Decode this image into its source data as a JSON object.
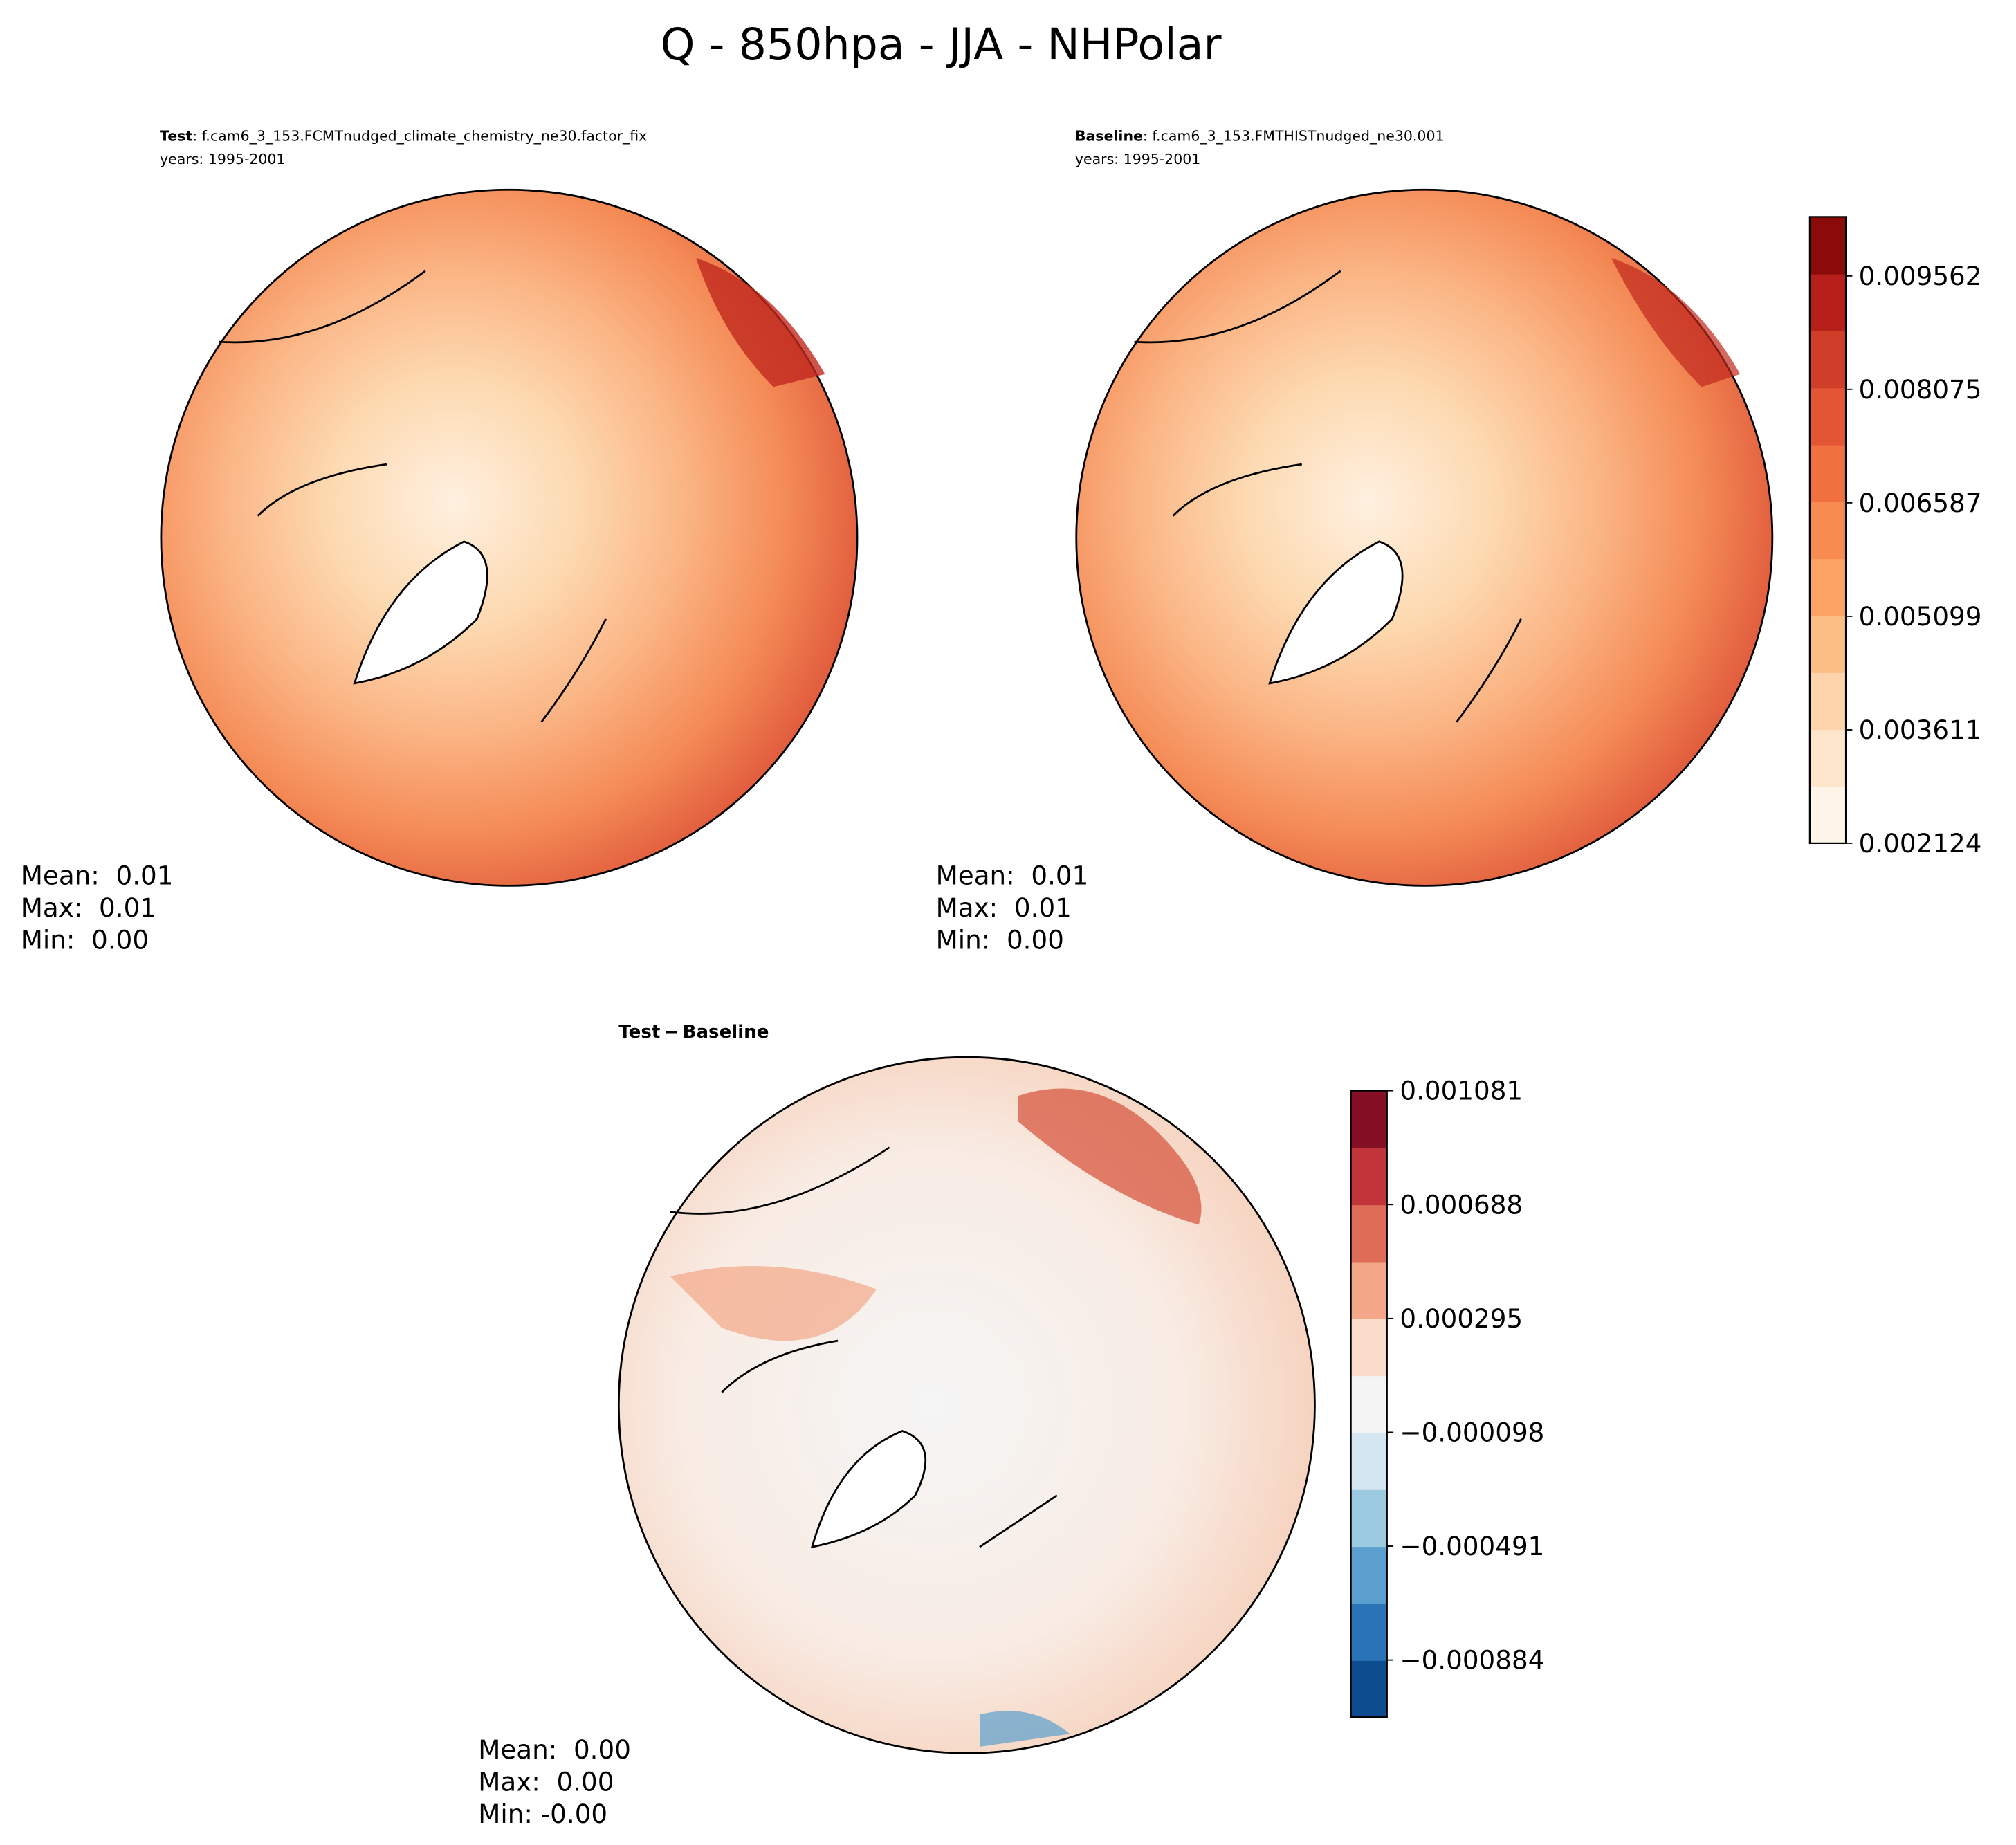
{
  "title": "Q - 850hpa - JJA - NHPolar",
  "panels": [
    {
      "label_bold": "Test",
      "label_rest": ": f.cam6_3_153.FCMTnudged_climate_chemistry_ne30.factor_fix",
      "years": "years: 1995-2001",
      "stats": [
        "Mean:  0.01",
        "Max:  0.01",
        "Min:  0.00"
      ]
    },
    {
      "label_bold": "Baseline",
      "label_rest": ": f.cam6_3_153.FMTHISTnudged_ne30.001",
      "years": "years: 1995-2001",
      "stats": [
        "Mean:  0.01",
        "Max:  0.01",
        "Min:  0.00"
      ]
    },
    {
      "label_bold": "Test − Baseline",
      "stats": [
        "Mean:  0.00",
        "Max:  0.00",
        "Min: -0.00"
      ]
    }
  ],
  "colorbars": [
    {
      "ylim": [
        0.002124,
        0.010337
      ],
      "yticks": [
        0.002124,
        0.003611,
        0.005099,
        0.006587,
        0.008075,
        0.009562
      ],
      "colors": [
        "#fef4e8",
        "#fee6cc",
        "#fdd4ab",
        "#fdbe85",
        "#fda465",
        "#f88b4f",
        "#f0703f",
        "#e35535",
        "#d03d28",
        "#b7201a",
        "#8b0a0a"
      ]
    },
    {
      "ylim": [
        -0.001081,
        0.001081
      ],
      "yticks": [
        {
          "value": -0.000884,
          "label": "−0.000884"
        },
        {
          "value": -0.000491,
          "label": "−0.000491"
        },
        {
          "value": -9.8e-05,
          "label": "−0.000098"
        },
        0.000295,
        0.000688,
        0.001081
      ],
      "colors": [
        "#0d4d8f",
        "#2a73b6",
        "#5a9fcd",
        "#9ccae1",
        "#d3e6f1",
        "#f4f4f4",
        "#fbdcca",
        "#f4a688",
        "#de6c57",
        "#c0343a",
        "#850f24"
      ]
    }
  ]
}
